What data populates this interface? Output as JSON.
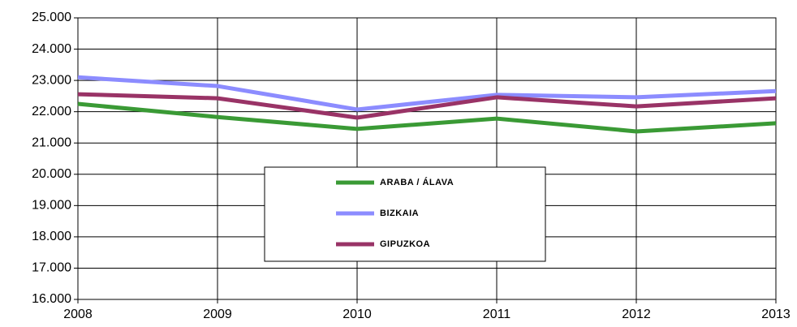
{
  "chart_data": {
    "type": "line",
    "x": [
      2008,
      2009,
      2010,
      2011,
      2012,
      2013
    ],
    "xlim": [
      2008,
      2013
    ],
    "xticks": [
      2008,
      2009,
      2010,
      2011,
      2012,
      2013
    ],
    "ylim": [
      16000,
      25000
    ],
    "yticks": [
      {
        "value": 16000,
        "label": "16.000"
      },
      {
        "value": 17000,
        "label": "17.000"
      },
      {
        "value": 18000,
        "label": "18.000"
      },
      {
        "value": 19000,
        "label": "19.000"
      },
      {
        "value": 20000,
        "label": "20.000"
      },
      {
        "value": 21000,
        "label": "21.000"
      },
      {
        "value": 22000,
        "label": "22.000"
      },
      {
        "value": 23000,
        "label": "23.000"
      },
      {
        "value": 24000,
        "label": "24.000"
      },
      {
        "value": 25000,
        "label": "25.000"
      }
    ],
    "grid": true,
    "legend": "center",
    "series": [
      {
        "name": "ARABA / ÁLAVA",
        "color": "#3a9a35",
        "values": [
          22250,
          21830,
          21450,
          21780,
          21370,
          21630
        ]
      },
      {
        "name": "BIZKAIA",
        "color": "#8c8cff",
        "values": [
          23100,
          22820,
          22070,
          22540,
          22460,
          22660
        ]
      },
      {
        "name": "GIPUZKOA",
        "color": "#993366",
        "values": [
          22560,
          22430,
          21810,
          22460,
          22170,
          22430
        ]
      }
    ]
  }
}
